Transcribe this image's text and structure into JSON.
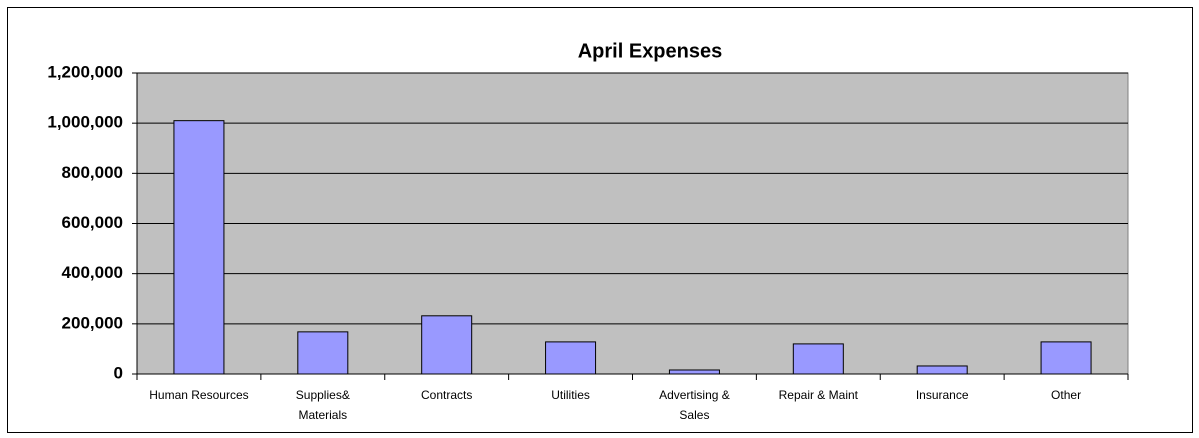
{
  "chart_data": {
    "type": "bar",
    "title": "April Expenses",
    "categories": [
      [
        "Human Resources"
      ],
      [
        "Supplies&",
        "Materials"
      ],
      [
        "Contracts"
      ],
      [
        "Utilities"
      ],
      [
        "Advertising &",
        "Sales"
      ],
      [
        "Repair & Maint"
      ],
      [
        "Insurance"
      ],
      [
        "Other"
      ]
    ],
    "values": [
      1010000,
      168000,
      232000,
      128000,
      16000,
      120000,
      32000,
      128000
    ],
    "color": "#9999ff",
    "ylim": [
      0,
      1200000
    ],
    "yticks": [
      0,
      {
        "value": 200000,
        "label": "200,000"
      },
      {
        "value": 400000,
        "label": "400,000"
      },
      {
        "value": 600000,
        "label": "600,000"
      },
      {
        "value": 800000,
        "label": "800,000"
      },
      {
        "value": 1000000,
        "label": "1,000,000"
      },
      {
        "value": 1200000,
        "label": "1,200,000"
      }
    ],
    "grid": true
  }
}
